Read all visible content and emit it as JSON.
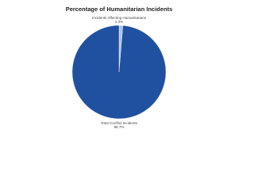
{
  "chart_data": {
    "type": "pie",
    "title": "Percentage of Humanitarian Incidents",
    "categories": [
      "Incidents Affecting Humanitarians",
      "Total Conflict Incidents"
    ],
    "values": [
      1.3,
      98.7
    ],
    "value_labels": [
      "1.3%",
      "98.7%"
    ],
    "colors": [
      "#a9c4eb",
      "#2050a0"
    ]
  }
}
